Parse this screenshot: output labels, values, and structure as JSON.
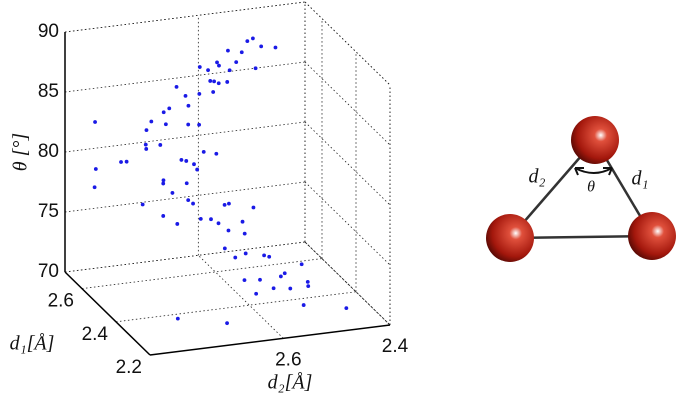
{
  "chart_data": {
    "type": "scatter3d",
    "zlabel": "θ [°]",
    "ylabel": "d₁[Å]",
    "xlabel": "d₂[Å]",
    "zlim": [
      70,
      90
    ],
    "zticks": [
      70,
      75,
      80,
      85,
      90
    ],
    "d1lim": [
      2.2,
      2.7
    ],
    "d1ticks": [
      2.2,
      2.4,
      2.6
    ],
    "d2lim": [
      2.85,
      2.4
    ],
    "d2ticks": [
      2.6,
      2.4
    ],
    "grid": true,
    "series": [
      {
        "color": "#1a1ae6",
        "d1": [
          2.57,
          2.6,
          2.54,
          2.62,
          2.55,
          2.59,
          2.52,
          2.63,
          2.58,
          2.56,
          2.61,
          2.53,
          2.6,
          2.63,
          2.57,
          2.65,
          2.58,
          2.62,
          2.55,
          2.66,
          2.59,
          2.61,
          2.54,
          2.64,
          2.57,
          2.6,
          2.67,
          2.58,
          2.61,
          2.55,
          2.63,
          2.57,
          2.52,
          2.6,
          2.64,
          2.56,
          2.62,
          2.5,
          2.59,
          2.66,
          2.53,
          2.48,
          2.5,
          2.54,
          2.46,
          2.52,
          2.56,
          2.48,
          2.44,
          2.58,
          2.51,
          2.47,
          2.55,
          2.42,
          2.53,
          2.49,
          2.57,
          2.4,
          2.44,
          2.36,
          2.42,
          2.38,
          2.46,
          2.34,
          2.41,
          2.45,
          2.37,
          2.32,
          2.43,
          2.39,
          2.3,
          2.47,
          2.62,
          2.4,
          2.35,
          2.3,
          2.68,
          2.55,
          2.28,
          2.5
        ],
        "d2": [
          2.56,
          2.54,
          2.58,
          2.57,
          2.53,
          2.6,
          2.55,
          2.52,
          2.62,
          2.5,
          2.59,
          2.6,
          2.63,
          2.6,
          2.66,
          2.64,
          2.6,
          2.68,
          2.62,
          2.61,
          2.7,
          2.57,
          2.67,
          2.66,
          2.64,
          2.72,
          2.58,
          2.67,
          2.7,
          2.65,
          2.72,
          2.74,
          2.68,
          2.64,
          2.68,
          2.71,
          2.76,
          2.63,
          2.78,
          2.71,
          2.72,
          2.66,
          2.64,
          2.67,
          2.62,
          2.6,
          2.64,
          2.68,
          2.6,
          2.66,
          2.7,
          2.57,
          2.61,
          2.64,
          2.72,
          2.58,
          2.69,
          2.58,
          2.55,
          2.6,
          2.62,
          2.54,
          2.59,
          2.56,
          2.52,
          2.63,
          2.5,
          2.58,
          2.48,
          2.61,
          2.53,
          2.55,
          2.82,
          2.8,
          2.75,
          2.45,
          2.8,
          2.84,
          2.68,
          2.47
        ],
        "theta": [
          88.5,
          88.9,
          88.2,
          88.0,
          89.1,
          87.6,
          87.8,
          88.6,
          87.2,
          88.7,
          87.0,
          86.8,
          85.0,
          85.5,
          84.6,
          84.2,
          86.0,
          83.8,
          85.8,
          86.3,
          84.0,
          86.5,
          83.5,
          85.2,
          82.9,
          83.2,
          84.8,
          80.0,
          81.0,
          79.5,
          80.5,
          81.8,
          80.8,
          79.2,
          82.2,
          78.8,
          79.8,
          81.4,
          80.3,
          81.6,
          79.0,
          82.0,
          76.0,
          77.2,
          75.5,
          76.8,
          75.2,
          77.8,
          76.4,
          78.0,
          75.8,
          77.0,
          74.8,
          78.3,
          76.3,
          74.6,
          77.5,
          72.0,
          73.2,
          71.5,
          73.8,
          72.6,
          71.2,
          73.0,
          70.8,
          74.2,
          71.8,
          72.4,
          70.5,
          74.5,
          71.0,
          72.9,
          78.0,
          79.5,
          70.4,
          70.3,
          82.5,
          80.6,
          70.6,
          71.3
        ]
      }
    ]
  },
  "diagram": {
    "labels": {
      "d1": "d₁",
      "d2": "d₂",
      "theta": "θ"
    }
  }
}
